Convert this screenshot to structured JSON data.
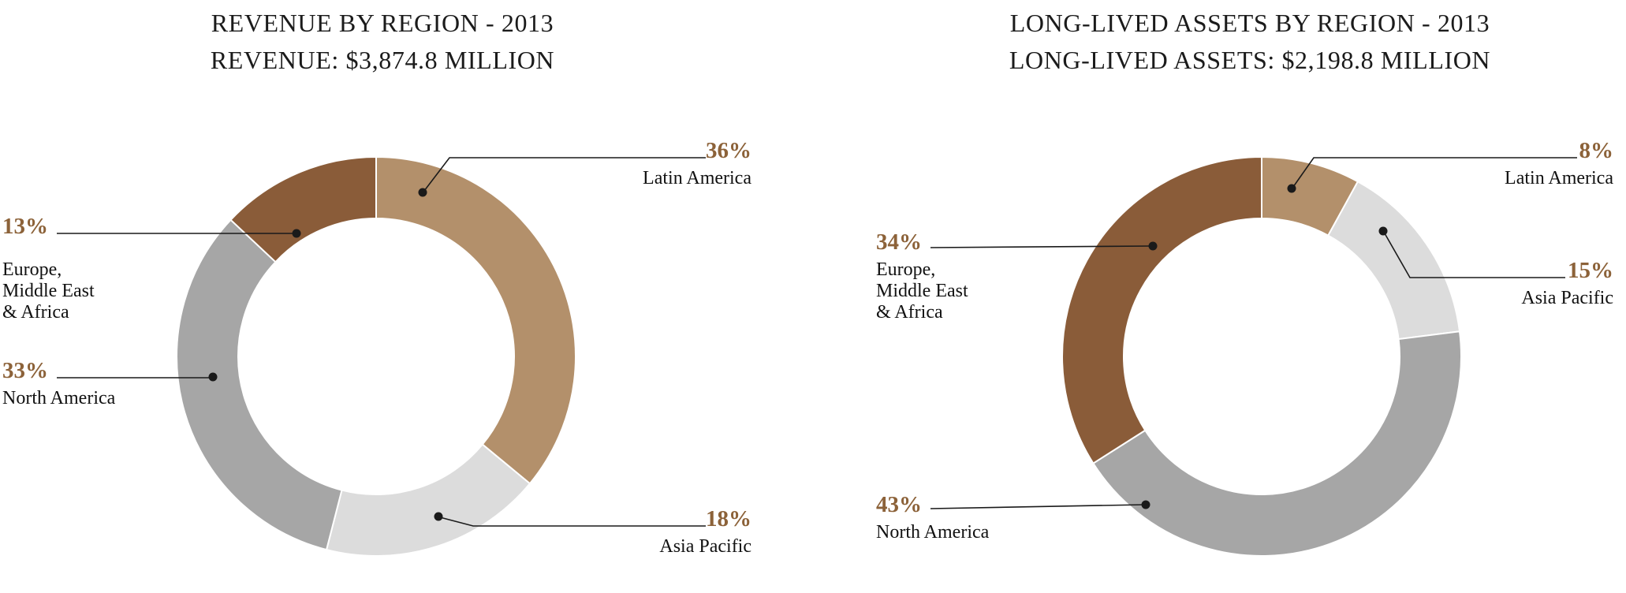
{
  "palette": {
    "accent_brown": "#8c6239",
    "text_color": "#1a1a1a",
    "leader_line_color": "#1a1a1a"
  },
  "chart_data": [
    {
      "type": "pie",
      "subtype": "donut",
      "title": "REVENUE BY REGION - 2013",
      "subtitle": "REVENUE: $3,874.8 MILLION",
      "total_value": "$3,874.8 MILLION",
      "unit": "%",
      "categories": [
        "Latin America",
        "Asia Pacific",
        "North America",
        "Europe, Middle East & Africa"
      ],
      "values": [
        36,
        18,
        33,
        13
      ],
      "colors": [
        "#b3906b",
        "#dcdcdc",
        "#a6a6a6",
        "#8a5c39"
      ],
      "legend_position": "callouts",
      "grid": false,
      "labels": [
        {
          "pct": "36%",
          "lines": [
            "Latin America"
          ]
        },
        {
          "pct": "18%",
          "lines": [
            "Asia Pacific"
          ]
        },
        {
          "pct": "33%",
          "lines": [
            "North America"
          ]
        },
        {
          "pct": "13%",
          "lines": [
            "Europe,",
            "Middle East",
            "& Africa"
          ]
        }
      ]
    },
    {
      "type": "pie",
      "subtype": "donut",
      "title": "LONG-LIVED ASSETS BY REGION - 2013",
      "subtitle": "LONG-LIVED ASSETS: $2,198.8 MILLION",
      "total_value": "$2,198.8 MILLION",
      "unit": "%",
      "categories": [
        "Latin America",
        "Asia Pacific",
        "North America",
        "Europe, Middle East & Africa"
      ],
      "values": [
        8,
        15,
        43,
        34
      ],
      "colors": [
        "#b3906b",
        "#dcdcdc",
        "#a6a6a6",
        "#8a5c39"
      ],
      "legend_position": "callouts",
      "grid": false,
      "labels": [
        {
          "pct": "8%",
          "lines": [
            "Latin America"
          ]
        },
        {
          "pct": "15%",
          "lines": [
            "Asia Pacific"
          ]
        },
        {
          "pct": "43%",
          "lines": [
            "North America"
          ]
        },
        {
          "pct": "34%",
          "lines": [
            "Europe,",
            "Middle East",
            "& Africa"
          ]
        }
      ]
    }
  ]
}
